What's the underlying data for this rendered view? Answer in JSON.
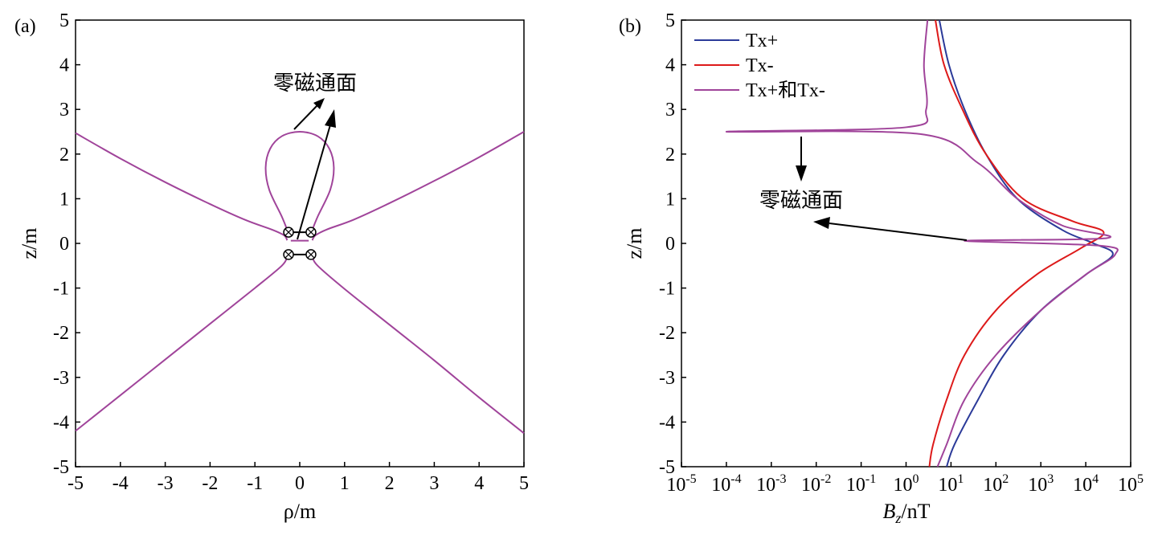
{
  "chart_data": [
    {
      "panel": "(a)",
      "type": "line",
      "xlabel": "ρ/m",
      "ylabel": "z/m",
      "xlim": [
        -5,
        5
      ],
      "ylim": [
        -5,
        5
      ],
      "xticks": [
        "-5",
        "-4",
        "-3",
        "-2",
        "-1",
        "0",
        "1",
        "2",
        "3",
        "4",
        "5"
      ],
      "yticks": [
        "-5",
        "-4",
        "-3",
        "-2",
        "-1",
        "0",
        "1",
        "2",
        "3",
        "4",
        "5"
      ],
      "grid": false,
      "annotation": "零磁通面",
      "color": "#a0449a",
      "series": [
        {
          "points": [
            [
              -5,
              2.47
            ],
            [
              -4,
              1.9
            ],
            [
              -3,
              1.37
            ],
            [
              -2,
              0.88
            ],
            [
              -1.2,
              0.52
            ],
            [
              -0.6,
              0.3
            ],
            [
              -0.35,
              0.18
            ],
            [
              -0.28,
              0.07
            ]
          ]
        },
        {
          "points": [
            [
              5,
              2.5
            ],
            [
              4,
              1.93
            ],
            [
              3,
              1.4
            ],
            [
              2,
              0.9
            ],
            [
              1.2,
              0.53
            ],
            [
              0.6,
              0.31
            ],
            [
              0.35,
              0.18
            ],
            [
              0.28,
              0.07
            ]
          ]
        },
        {
          "points": [
            [
              -5,
              -4.2
            ],
            [
              -4,
              -3.4
            ],
            [
              -3,
              -2.6
            ],
            [
              -2,
              -1.8
            ],
            [
              -1,
              -1
            ],
            [
              -0.4,
              -0.5
            ],
            [
              -0.28,
              -0.3
            ]
          ]
        },
        {
          "points": [
            [
              5,
              -4.25
            ],
            [
              4,
              -3.45
            ],
            [
              3,
              -2.62
            ],
            [
              2,
              -1.82
            ],
            [
              1,
              -1.02
            ],
            [
              0.4,
              -0.5
            ],
            [
              0.28,
              -0.3
            ]
          ]
        },
        {
          "points": [
            [
              -0.26,
              0.25
            ],
            [
              -0.4,
              0.6
            ],
            [
              -0.68,
              1.2
            ],
            [
              -0.76,
              1.7
            ],
            [
              -0.66,
              2.12
            ],
            [
              -0.4,
              2.4
            ],
            [
              0,
              2.5
            ],
            [
              0.4,
              2.4
            ],
            [
              0.66,
              2.12
            ],
            [
              0.76,
              1.7
            ],
            [
              0.68,
              1.2
            ],
            [
              0.4,
              0.6
            ],
            [
              0.26,
              0.25
            ]
          ]
        },
        {
          "points": [
            [
              -0.2,
              0.06
            ],
            [
              0,
              0.06
            ],
            [
              0.2,
              0.06
            ]
          ]
        }
      ],
      "markers": [
        [
          -0.25,
          0.25
        ],
        [
          0.25,
          0.25
        ],
        [
          -0.25,
          -0.25
        ],
        [
          0.25,
          -0.25
        ]
      ]
    },
    {
      "panel": "(b)",
      "type": "line",
      "xlabel": "Bz/nT",
      "ylabel": "z/m",
      "xscale": "log",
      "xlim": [
        1e-05,
        100000
      ],
      "ylim": [
        -5,
        5
      ],
      "xticks": [
        "10-5",
        "10-4",
        "10-3",
        "10-2",
        "10-1",
        "100",
        "101",
        "102",
        "103",
        "104",
        "105"
      ],
      "yticks": [
        "-5",
        "-4",
        "-3",
        "-2",
        "-1",
        "0",
        "1",
        "2",
        "3",
        "4",
        "5"
      ],
      "grid": false,
      "legend": "top-left",
      "annotation": "零磁通面",
      "series": [
        {
          "name": "Tx+",
          "color": "#2b3a99",
          "points": [
            [
              5.5,
              5
            ],
            [
              9,
              4
            ],
            [
              20,
              3
            ],
            [
              60,
              2
            ],
            [
              300,
              1
            ],
            [
              3000,
              0.3
            ],
            [
              15000,
              0
            ],
            [
              40000,
              -0.25
            ],
            [
              10000,
              -0.7
            ],
            [
              1000,
              -1.5
            ],
            [
              150,
              -2.5
            ],
            [
              40,
              -3.5
            ],
            [
              12,
              -4.5
            ],
            [
              8,
              -5
            ]
          ]
        },
        {
          "name": "Tx-",
          "color": "#dd1a1a",
          "points": [
            [
              4.5,
              5
            ],
            [
              7,
              4
            ],
            [
              18,
              3
            ],
            [
              60,
              2
            ],
            [
              400,
              1
            ],
            [
              5000,
              0.5
            ],
            [
              25000,
              0.25
            ],
            [
              8000,
              -0.1
            ],
            [
              800,
              -0.7
            ],
            [
              100,
              -1.5
            ],
            [
              20,
              -2.5
            ],
            [
              8,
              -3.5
            ],
            [
              4,
              -4.5
            ],
            [
              3.3,
              -5
            ]
          ]
        },
        {
          "name": "Tx+和Tx-",
          "color": "#a0449a",
          "points": [
            [
              3,
              5
            ],
            [
              2.5,
              4
            ],
            [
              2.8,
              3
            ],
            [
              1,
              2.6
            ],
            [
              0.0001,
              2.5
            ],
            [
              2,
              2.45
            ],
            [
              40,
              1.8
            ],
            [
              300,
              1
            ],
            [
              3000,
              0.4
            ],
            [
              30000,
              0.12
            ],
            [
              20,
              0.06
            ],
            [
              20000,
              -0.05
            ],
            [
              45000,
              -0.25
            ],
            [
              10000,
              -0.7
            ],
            [
              1000,
              -1.5
            ],
            [
              100,
              -2.5
            ],
            [
              20,
              -3.5
            ],
            [
              8,
              -4.5
            ],
            [
              5,
              -5
            ]
          ]
        }
      ]
    }
  ]
}
